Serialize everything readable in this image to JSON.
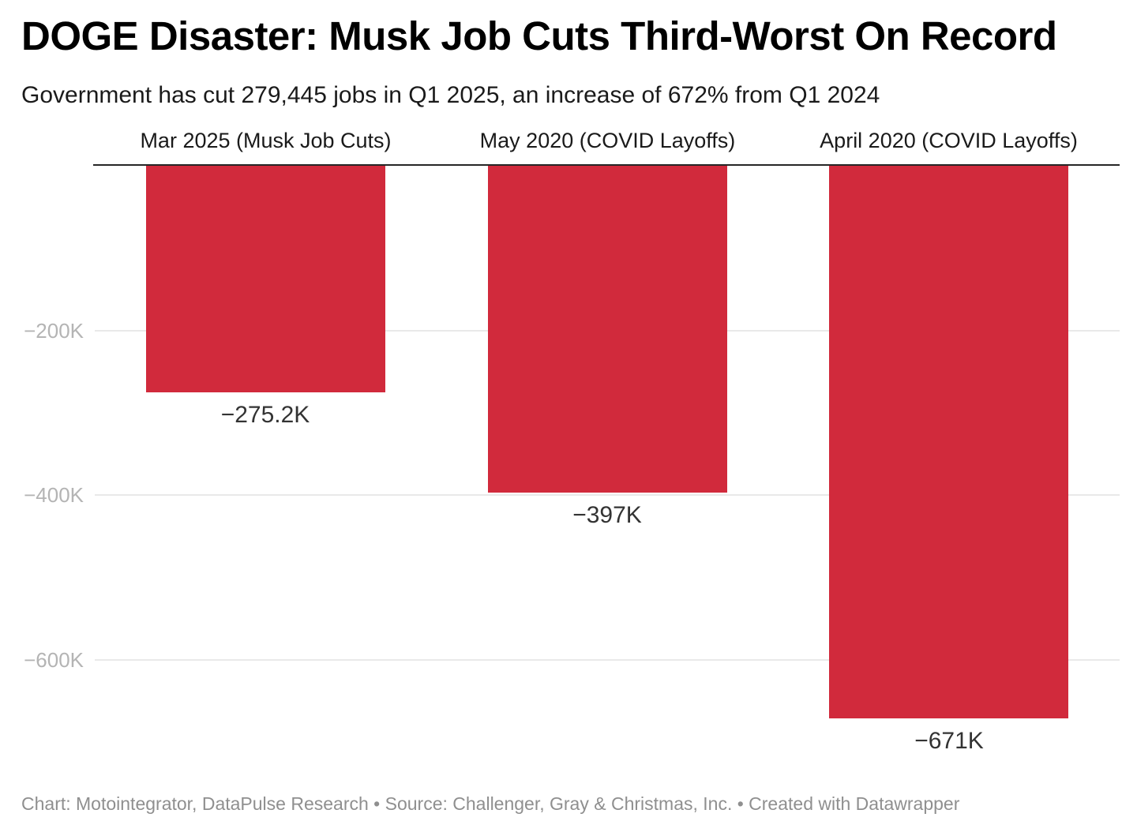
{
  "header": {
    "title": "DOGE Disaster: Musk Job Cuts Third-Worst On Record",
    "subtitle": "Government has cut 279,445 jobs in Q1 2025, an increase of 672% from Q1 2024"
  },
  "chart_data": {
    "type": "bar",
    "title": "DOGE Disaster: Musk Job Cuts Third-Worst On Record",
    "subtitle": "Government has cut 279,445 jobs in Q1 2025, an increase of 672% from Q1 2024",
    "categories": [
      "Mar 2025 (Musk Job Cuts)",
      "May 2020 (COVID Layoffs)",
      "April 2020 (COVID Layoffs)"
    ],
    "values": [
      -275200,
      -397000,
      -671000
    ],
    "value_labels": [
      "−275.2K",
      "−397K",
      "−671K"
    ],
    "unit": "jobs",
    "ylim": [
      -700000,
      0
    ],
    "y_ticks": [
      {
        "value": -200000,
        "label": "−200K"
      },
      {
        "value": -400000,
        "label": "−400K"
      },
      {
        "value": -600000,
        "label": "−600K"
      }
    ],
    "grid": "horizontal",
    "legend": "none",
    "bar_color": "#d12a3c",
    "zero_line_color": "#262626",
    "gridline_color": "#e9e9e9",
    "tick_label_color": "#b4b4b4",
    "value_label_color": "#333333"
  },
  "footer": {
    "text": "Chart: Motointegrator, DataPulse Research • Source: Challenger, Gray & Christmas, Inc. • Created with Datawrapper"
  }
}
